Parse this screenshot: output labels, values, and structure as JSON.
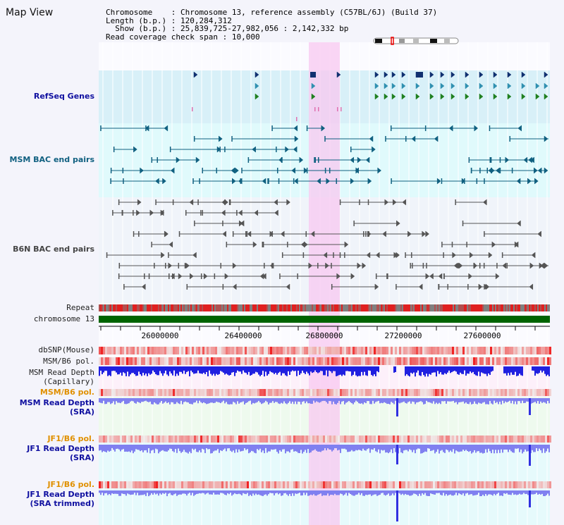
{
  "title": "Map View",
  "info": {
    "chromosome_label": "Chromosome",
    "chromosome_value": "Chromosome 13, reference assembly (C57BL/6J) (Build 37)",
    "length_label": "Length (b.p.)",
    "length_value": "120,284,312",
    "show_label": "Show (b.p.)",
    "show_value": "25,839,725-27,982,056 : 2,142,332 bp",
    "coverage_label": "Read coverage check span",
    "coverage_value": "10,000"
  },
  "tracks": {
    "refseq": "RefSeq Genes",
    "msm_bac": "MSM BAC end pairs",
    "b6n_bac": "B6N BAC end pairs",
    "repeat": "Repeat",
    "chromosome": "chromosome 13",
    "dbsnp": "dbSNP(Mouse)",
    "msm_b6_pol_1": "MSM/B6 pol.",
    "msm_depth_cap_1": "MSM Read Depth",
    "msm_depth_cap_2": "(Capillary)",
    "msm_b6_pol_2": "MSM/B6 pol.",
    "msm_depth_sra_1": "MSM Read Depth",
    "msm_depth_sra_2": "(SRA)",
    "jf1_b6_pol_1": "JF1/B6 pol.",
    "jf1_depth_sra_1": "JF1 Read Depth",
    "jf1_depth_sra_2": "(SRA)",
    "jf1_b6_pol_2": "JF1/B6 pol.",
    "jf1_trim_1": "JF1 Read Depth",
    "jf1_trim_2": "(SRA trimmed)"
  },
  "axis_ticks": [
    "26000000",
    "26400000",
    "26800000",
    "27200000",
    "27600000"
  ],
  "colors": {
    "highlight": "#f8d0f0",
    "refseq_bg": "#d8f0f8",
    "msm_bg": "#e0fafc",
    "b6n_bg": "#f0f4fa",
    "chromosome": "#006400",
    "msm_feature": "#106080",
    "b6n_feature": "#555555",
    "refseq_blue": "#103070",
    "refseq_teal": "#3090b0",
    "refseq_green": "#208020",
    "depth_dark": "#2020e0",
    "depth_light": "#8080f0"
  }
}
